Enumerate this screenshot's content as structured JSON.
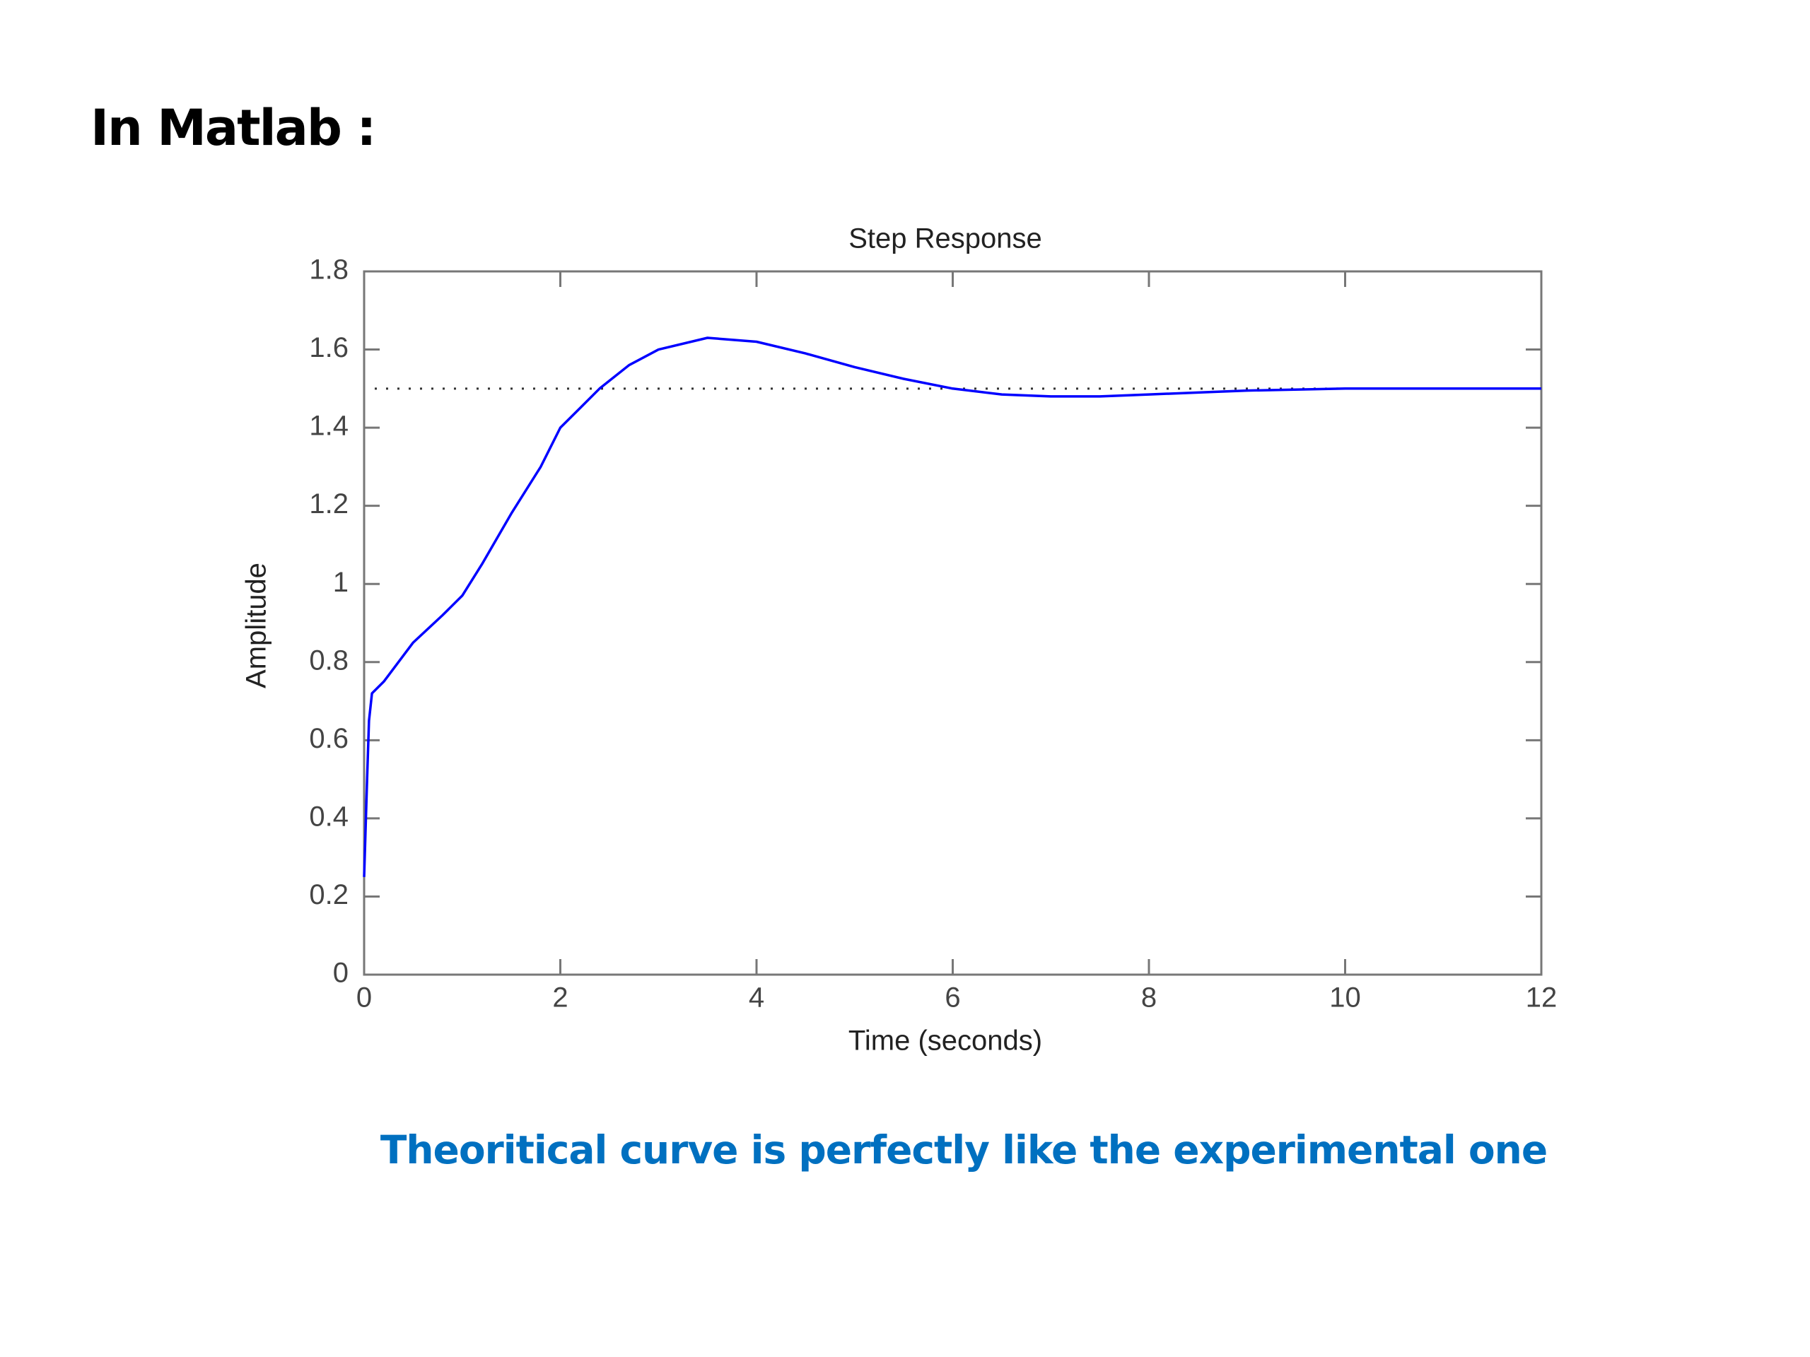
{
  "title": "In Matlab :",
  "chart_data": {
    "type": "line",
    "title": "Step Response",
    "xlabel": "Time (seconds)",
    "ylabel": "Amplitude",
    "x": [
      0,
      0.03,
      0.05,
      0.08,
      0.2,
      0.5,
      0.8,
      1.0,
      1.2,
      1.5,
      1.8,
      2.0,
      2.2,
      2.4,
      2.7,
      3.0,
      3.5,
      4.0,
      4.5,
      5.0,
      5.5,
      6.0,
      6.5,
      7.0,
      7.5,
      8.0,
      8.5,
      9.0,
      10,
      11,
      12
    ],
    "series": [
      {
        "color": "#0000ff",
        "values": [
          0.25,
          0.5,
          0.65,
          0.72,
          0.75,
          0.85,
          0.92,
          0.97,
          1.05,
          1.18,
          1.3,
          1.4,
          1.45,
          1.5,
          1.56,
          1.6,
          1.63,
          1.62,
          1.59,
          1.555,
          1.525,
          1.5,
          1.485,
          1.48,
          1.48,
          1.485,
          1.49,
          1.495,
          1.5,
          1.5,
          1.5
        ]
      }
    ],
    "steady_state": 1.5,
    "xlim": [
      0,
      12
    ],
    "xticks": [
      0,
      2,
      4,
      6,
      8,
      10,
      12
    ],
    "ylim": [
      0,
      1.8
    ],
    "yticks": [
      0,
      0.2,
      0.4,
      0.6,
      0.8,
      1,
      1.2,
      1.4,
      1.6,
      1.8
    ]
  },
  "caption": "Theoritical curve is perfectly like the experimental one"
}
